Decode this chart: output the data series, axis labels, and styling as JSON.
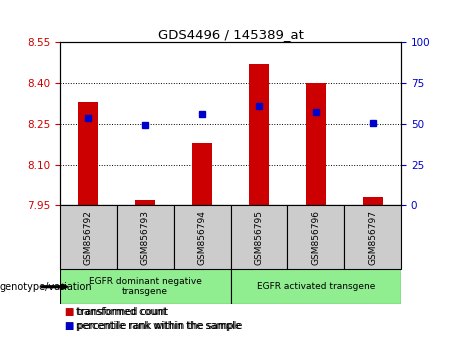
{
  "title": "GDS4496 / 145389_at",
  "samples": [
    "GSM856792",
    "GSM856793",
    "GSM856794",
    "GSM856795",
    "GSM856796",
    "GSM856797"
  ],
  "red_values": [
    8.33,
    7.97,
    8.18,
    8.47,
    8.4,
    7.98
  ],
  "blue_values": [
    8.27,
    8.245,
    8.285,
    8.315,
    8.295,
    8.255
  ],
  "ylim_left": [
    7.95,
    8.55
  ],
  "ylim_right": [
    0,
    100
  ],
  "yticks_left": [
    7.95,
    8.1,
    8.25,
    8.4,
    8.55
  ],
  "yticks_right": [
    0,
    25,
    50,
    75,
    100
  ],
  "left_color": "#cc0000",
  "right_color": "#0000cc",
  "group1_label": "EGFR dominant negative\ntransgene",
  "group2_label": "EGFR activated transgene",
  "group1_samples": [
    0,
    1,
    2
  ],
  "group2_samples": [
    3,
    4,
    5
  ],
  "legend_red": "transformed count",
  "legend_blue": "percentile rank within the sample",
  "genotype_label": "genotype/variation",
  "bar_bottom": 7.95,
  "green_color": "#90ee90",
  "gray_color": "#cccccc",
  "bar_width": 0.35
}
